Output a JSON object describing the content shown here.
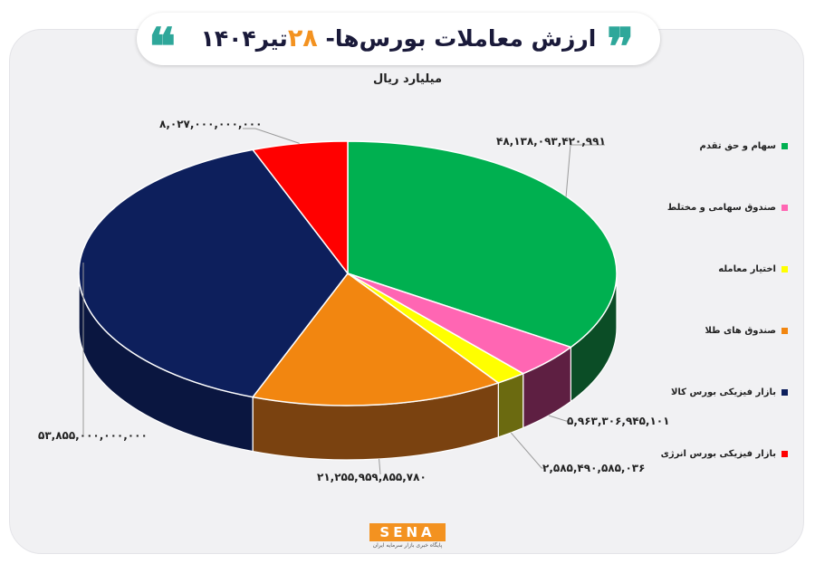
{
  "title": {
    "prefix": "ارزش معاملات بورس‌ها-",
    "day": "۲۸",
    "month_year": "تیر۱۴۰۴",
    "open_quote": "❝",
    "close_quote": "❞"
  },
  "subtitle": "میلیارد ریال",
  "logo": {
    "text": "SENA",
    "subtext": "پایگاه خبری بازار سرمایه ایران"
  },
  "colors": {
    "stocks": "#00b050",
    "mixed_funds": "#ff66b3",
    "options": "#ffff00",
    "gold_funds": "#f28610",
    "commodity": "#0d1f5c",
    "energy": "#ff0000"
  },
  "chart_data": {
    "type": "pie",
    "unit": "میلیارد ریال",
    "slices": [
      {
        "key": "stocks",
        "name": "سهام و حق تقدم",
        "value": 48138093420991,
        "label": "۴۸,۱۳۸,۰۹۳,۴۲۰,۹۹۱",
        "color": "#00b050",
        "side": "#0b4d26"
      },
      {
        "key": "mixed_funds",
        "name": "صندوق سهامی و مختلط",
        "value": 5963306945101,
        "label": "۵,۹۶۳,۳۰۶,۹۴۵,۱۰۱",
        "color": "#ff66b3",
        "side": "#5e1f42"
      },
      {
        "key": "options",
        "name": "اختیار معامله",
        "value": 2585490585036,
        "label": "۲,۵۸۵,۴۹۰,۵۸۵,۰۳۶",
        "color": "#ffff00",
        "side": "#6b6a10"
      },
      {
        "key": "gold_funds",
        "name": "صندوق های طلا",
        "value": 21255959855780,
        "label": "۲۱,۲۵۵,۹۵۹,۸۵۵,۷۸۰",
        "color": "#f28610",
        "side": "#7a4210"
      },
      {
        "key": "commodity",
        "name": "بازار فیزیکی بورس کالا",
        "value": 53855000000000,
        "label": "۵۳,۸۵۵,۰۰۰,۰۰۰,۰۰۰",
        "color": "#0d1f5c",
        "side": "#0a1640"
      },
      {
        "key": "energy",
        "name": "بازار فیزیکی بورس انرژی",
        "value": 8027000000000,
        "label": "۸,۰۲۷,۰۰۰,۰۰۰,۰۰۰",
        "color": "#ff0000",
        "side": "#8a0b0b"
      }
    ],
    "legend_position": "right"
  }
}
